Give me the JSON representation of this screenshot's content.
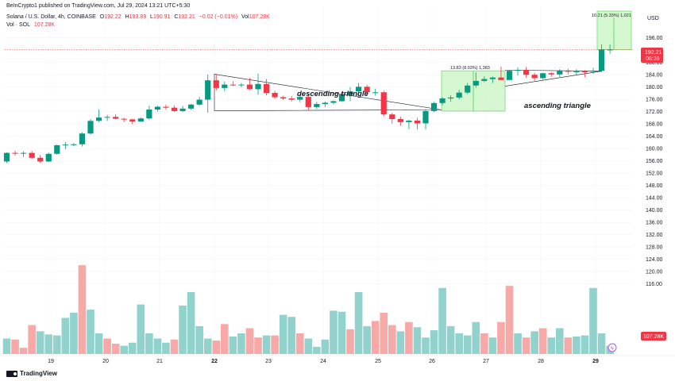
{
  "header": {
    "published": "BeInCrypto1 published on TradingView.com, Jul 29, 2024 13:21 UTC+5:30",
    "symbol": "Solana / U.S. Dollar, 4h, COINBASE",
    "o_label": "O",
    "o_value": "192.22",
    "h_label": "H",
    "h_value": "193.89",
    "l_label": "L",
    "l_value": "190.91",
    "c_label": "C",
    "c_value": "192.21",
    "change": "−0.02 (−0.01%)",
    "vol_label": "Vol",
    "vol_value": "107.28K",
    "vol_symbol_label": "Vol · SOL",
    "vol_symbol_value": "107.28K"
  },
  "currency": "USD",
  "branding": "TradingView",
  "colors": {
    "up": "#089981",
    "down": "#f23645",
    "vol_up": "#92d2cc",
    "vol_down": "#f7a9a7",
    "measure": "#c8f5c0",
    "measure_line": "#4cd54a"
  },
  "chart_data": {
    "type": "candlestick",
    "x_ticks": [
      "19",
      "20",
      "21",
      "22",
      "23",
      "24",
      "25",
      "26",
      "27",
      "28",
      "29"
    ],
    "y_ticks": [
      "196.00",
      "192.00",
      "188.00",
      "184.00",
      "180.00",
      "176.00",
      "172.00",
      "168.00",
      "164.00",
      "160.00",
      "156.00",
      "152.00",
      "148.00",
      "144.00",
      "140.00",
      "136.00",
      "132.00",
      "128.00",
      "124.00",
      "120.00",
      "116.00"
    ],
    "ylim": [
      113,
      200.6
    ],
    "candles_ohlc": [
      [
        155.8,
        158.8,
        155.3,
        158.6
      ],
      [
        158.6,
        159.3,
        157.7,
        158.4
      ],
      [
        158.4,
        159.1,
        157.3,
        158.6
      ],
      [
        158.6,
        159.2,
        156.6,
        157.0
      ],
      [
        157.0,
        157.9,
        155.3,
        155.8
      ],
      [
        155.8,
        158.7,
        155.6,
        158.3
      ],
      [
        158.3,
        161.3,
        158.0,
        161.1
      ],
      [
        161.1,
        162.1,
        159.9,
        161.3
      ],
      [
        161.3,
        161.8,
        160.8,
        161.4
      ],
      [
        161.4,
        165.3,
        160.7,
        164.9
      ],
      [
        164.9,
        169.6,
        164.6,
        169.0
      ],
      [
        169.0,
        172.7,
        168.6,
        170.1
      ],
      [
        170.1,
        171.0,
        169.0,
        170.3
      ],
      [
        170.3,
        171.2,
        169.5,
        169.7
      ],
      [
        169.7,
        170.0,
        168.6,
        169.5
      ],
      [
        169.5,
        169.7,
        167.9,
        168.8
      ],
      [
        168.8,
        170.1,
        168.7,
        169.8
      ],
      [
        169.8,
        174.0,
        169.4,
        172.7
      ],
      [
        172.7,
        173.9,
        172.1,
        173.6
      ],
      [
        173.6,
        174.3,
        172.6,
        173.3
      ],
      [
        173.3,
        174.0,
        171.9,
        172.2
      ],
      [
        172.2,
        173.9,
        171.9,
        173.0
      ],
      [
        173.0,
        174.5,
        172.6,
        174.3
      ],
      [
        174.3,
        176.8,
        174.0,
        175.9
      ],
      [
        175.9,
        184.1,
        171.7,
        182.2
      ],
      [
        182.2,
        184.3,
        178.9,
        179.7
      ],
      [
        179.7,
        181.8,
        178.6,
        180.8
      ],
      [
        180.8,
        181.9,
        180.3,
        180.6
      ],
      [
        180.6,
        181.3,
        179.9,
        180.8
      ],
      [
        180.8,
        183.0,
        179.1,
        179.3
      ],
      [
        179.3,
        184.4,
        177.5,
        181.0
      ],
      [
        181.0,
        182.6,
        177.3,
        178.1
      ],
      [
        178.1,
        178.8,
        176.2,
        176.7
      ],
      [
        176.7,
        177.2,
        175.8,
        176.3
      ],
      [
        176.3,
        177.1,
        175.3,
        175.9
      ],
      [
        175.9,
        177.8,
        175.1,
        176.8
      ],
      [
        176.8,
        177.7,
        172.6,
        173.5
      ],
      [
        173.5,
        175.2,
        172.9,
        174.5
      ],
      [
        174.5,
        175.3,
        173.5,
        174.9
      ],
      [
        174.9,
        175.6,
        174.4,
        175.4
      ],
      [
        175.4,
        178.4,
        175.3,
        177.6
      ],
      [
        177.6,
        180.0,
        175.4,
        178.6
      ],
      [
        178.6,
        181.3,
        177.8,
        180.1
      ],
      [
        180.1,
        180.7,
        177.3,
        178.3
      ],
      [
        178.3,
        179.5,
        177.2,
        178.3
      ],
      [
        178.3,
        178.8,
        170.4,
        171.1
      ],
      [
        171.1,
        171.6,
        168.1,
        169.6
      ],
      [
        169.6,
        170.4,
        167.4,
        168.6
      ],
      [
        168.6,
        169.3,
        166.3,
        169.1
      ],
      [
        169.1,
        170.0,
        166.2,
        168.2
      ],
      [
        168.2,
        172.8,
        166.2,
        172.2
      ],
      [
        172.2,
        175.2,
        171.8,
        174.8
      ],
      [
        174.8,
        176.7,
        174.1,
        176.3
      ],
      [
        176.3,
        177.3,
        175.3,
        176.6
      ],
      [
        176.6,
        179.1,
        176.0,
        178.2
      ],
      [
        178.2,
        181.3,
        177.7,
        180.5
      ],
      [
        180.5,
        184.8,
        179.8,
        182.0
      ],
      [
        182.0,
        183.5,
        181.6,
        182.6
      ],
      [
        182.6,
        183.4,
        181.3,
        183.1
      ],
      [
        183.1,
        186.7,
        182.9,
        182.3
      ],
      [
        182.3,
        185.6,
        183.3,
        185.3
      ],
      [
        185.3,
        186.4,
        183.8,
        185.6
      ],
      [
        185.6,
        186.5,
        183.1,
        184.0
      ],
      [
        184.0,
        184.6,
        182.0,
        182.9
      ],
      [
        182.9,
        184.7,
        182.4,
        184.5
      ],
      [
        184.5,
        184.9,
        183.3,
        184.1
      ],
      [
        184.1,
        185.8,
        183.3,
        185.3
      ],
      [
        185.3,
        186.0,
        184.1,
        185.0
      ],
      [
        185.0,
        185.8,
        184.0,
        185.1
      ],
      [
        185.1,
        185.5,
        183.2,
        185.0
      ],
      [
        185.0,
        186.3,
        184.3,
        185.3
      ],
      [
        185.3,
        193.9,
        184.9,
        192.2
      ],
      [
        192.2,
        193.9,
        190.9,
        192.2
      ]
    ],
    "volume_up_flags": [
      1,
      0,
      0,
      0,
      1,
      1,
      1,
      1,
      1,
      0,
      1,
      1,
      0,
      0,
      1,
      1,
      1,
      1,
      1,
      1,
      0,
      1,
      1,
      1,
      1,
      0,
      0,
      1,
      1,
      0,
      0,
      1,
      0,
      1,
      1,
      0,
      1,
      1,
      1,
      1,
      1,
      0,
      1,
      1,
      0,
      0,
      0,
      1,
      0,
      1,
      1,
      1,
      1,
      1,
      1,
      1,
      1,
      0,
      1,
      0,
      0,
      1,
      0,
      1,
      0,
      1,
      1,
      0,
      1,
      1,
      1,
      1,
      1
    ],
    "volume_levels": [
      0.15,
      0.14,
      0.06,
      0.28,
      0.22,
      0.19,
      0.18,
      0.35,
      0.4,
      0.86,
      0.43,
      0.2,
      0.15,
      0.1,
      0.08,
      0.11,
      0.48,
      0.2,
      0.15,
      0.11,
      0.14,
      0.47,
      0.6,
      0.27,
      0.15,
      0.13,
      0.29,
      0.17,
      0.2,
      0.25,
      0.16,
      0.18,
      0.18,
      0.38,
      0.36,
      0.2,
      0.15,
      0.07,
      0.14,
      0.42,
      0.41,
      0.24,
      0.6,
      0.27,
      0.32,
      0.4,
      0.28,
      0.22,
      0.31,
      0.26,
      0.16,
      0.23,
      0.64,
      0.27,
      0.2,
      0.18,
      0.31,
      0.2,
      0.16,
      0.31,
      0.66,
      0.2,
      0.16,
      0.22,
      0.25,
      0.16,
      0.25,
      0.16,
      0.17,
      0.18,
      0.64,
      0.2,
      0.08
    ],
    "current_price": "192.21",
    "countdown": "08:39",
    "volume_y_ticks": [
      "136.00",
      "132.00",
      "128.00",
      "124.00",
      "120.00",
      "116.00"
    ],
    "volume_last_label": "107.28K",
    "annotations": [
      {
        "text": "descending triangle"
      },
      {
        "text": "ascending triangle"
      },
      {
        "text": "13.83 (8.03%) 1,383"
      },
      {
        "text": "10.21 (5.33%) 1,021"
      }
    ]
  }
}
